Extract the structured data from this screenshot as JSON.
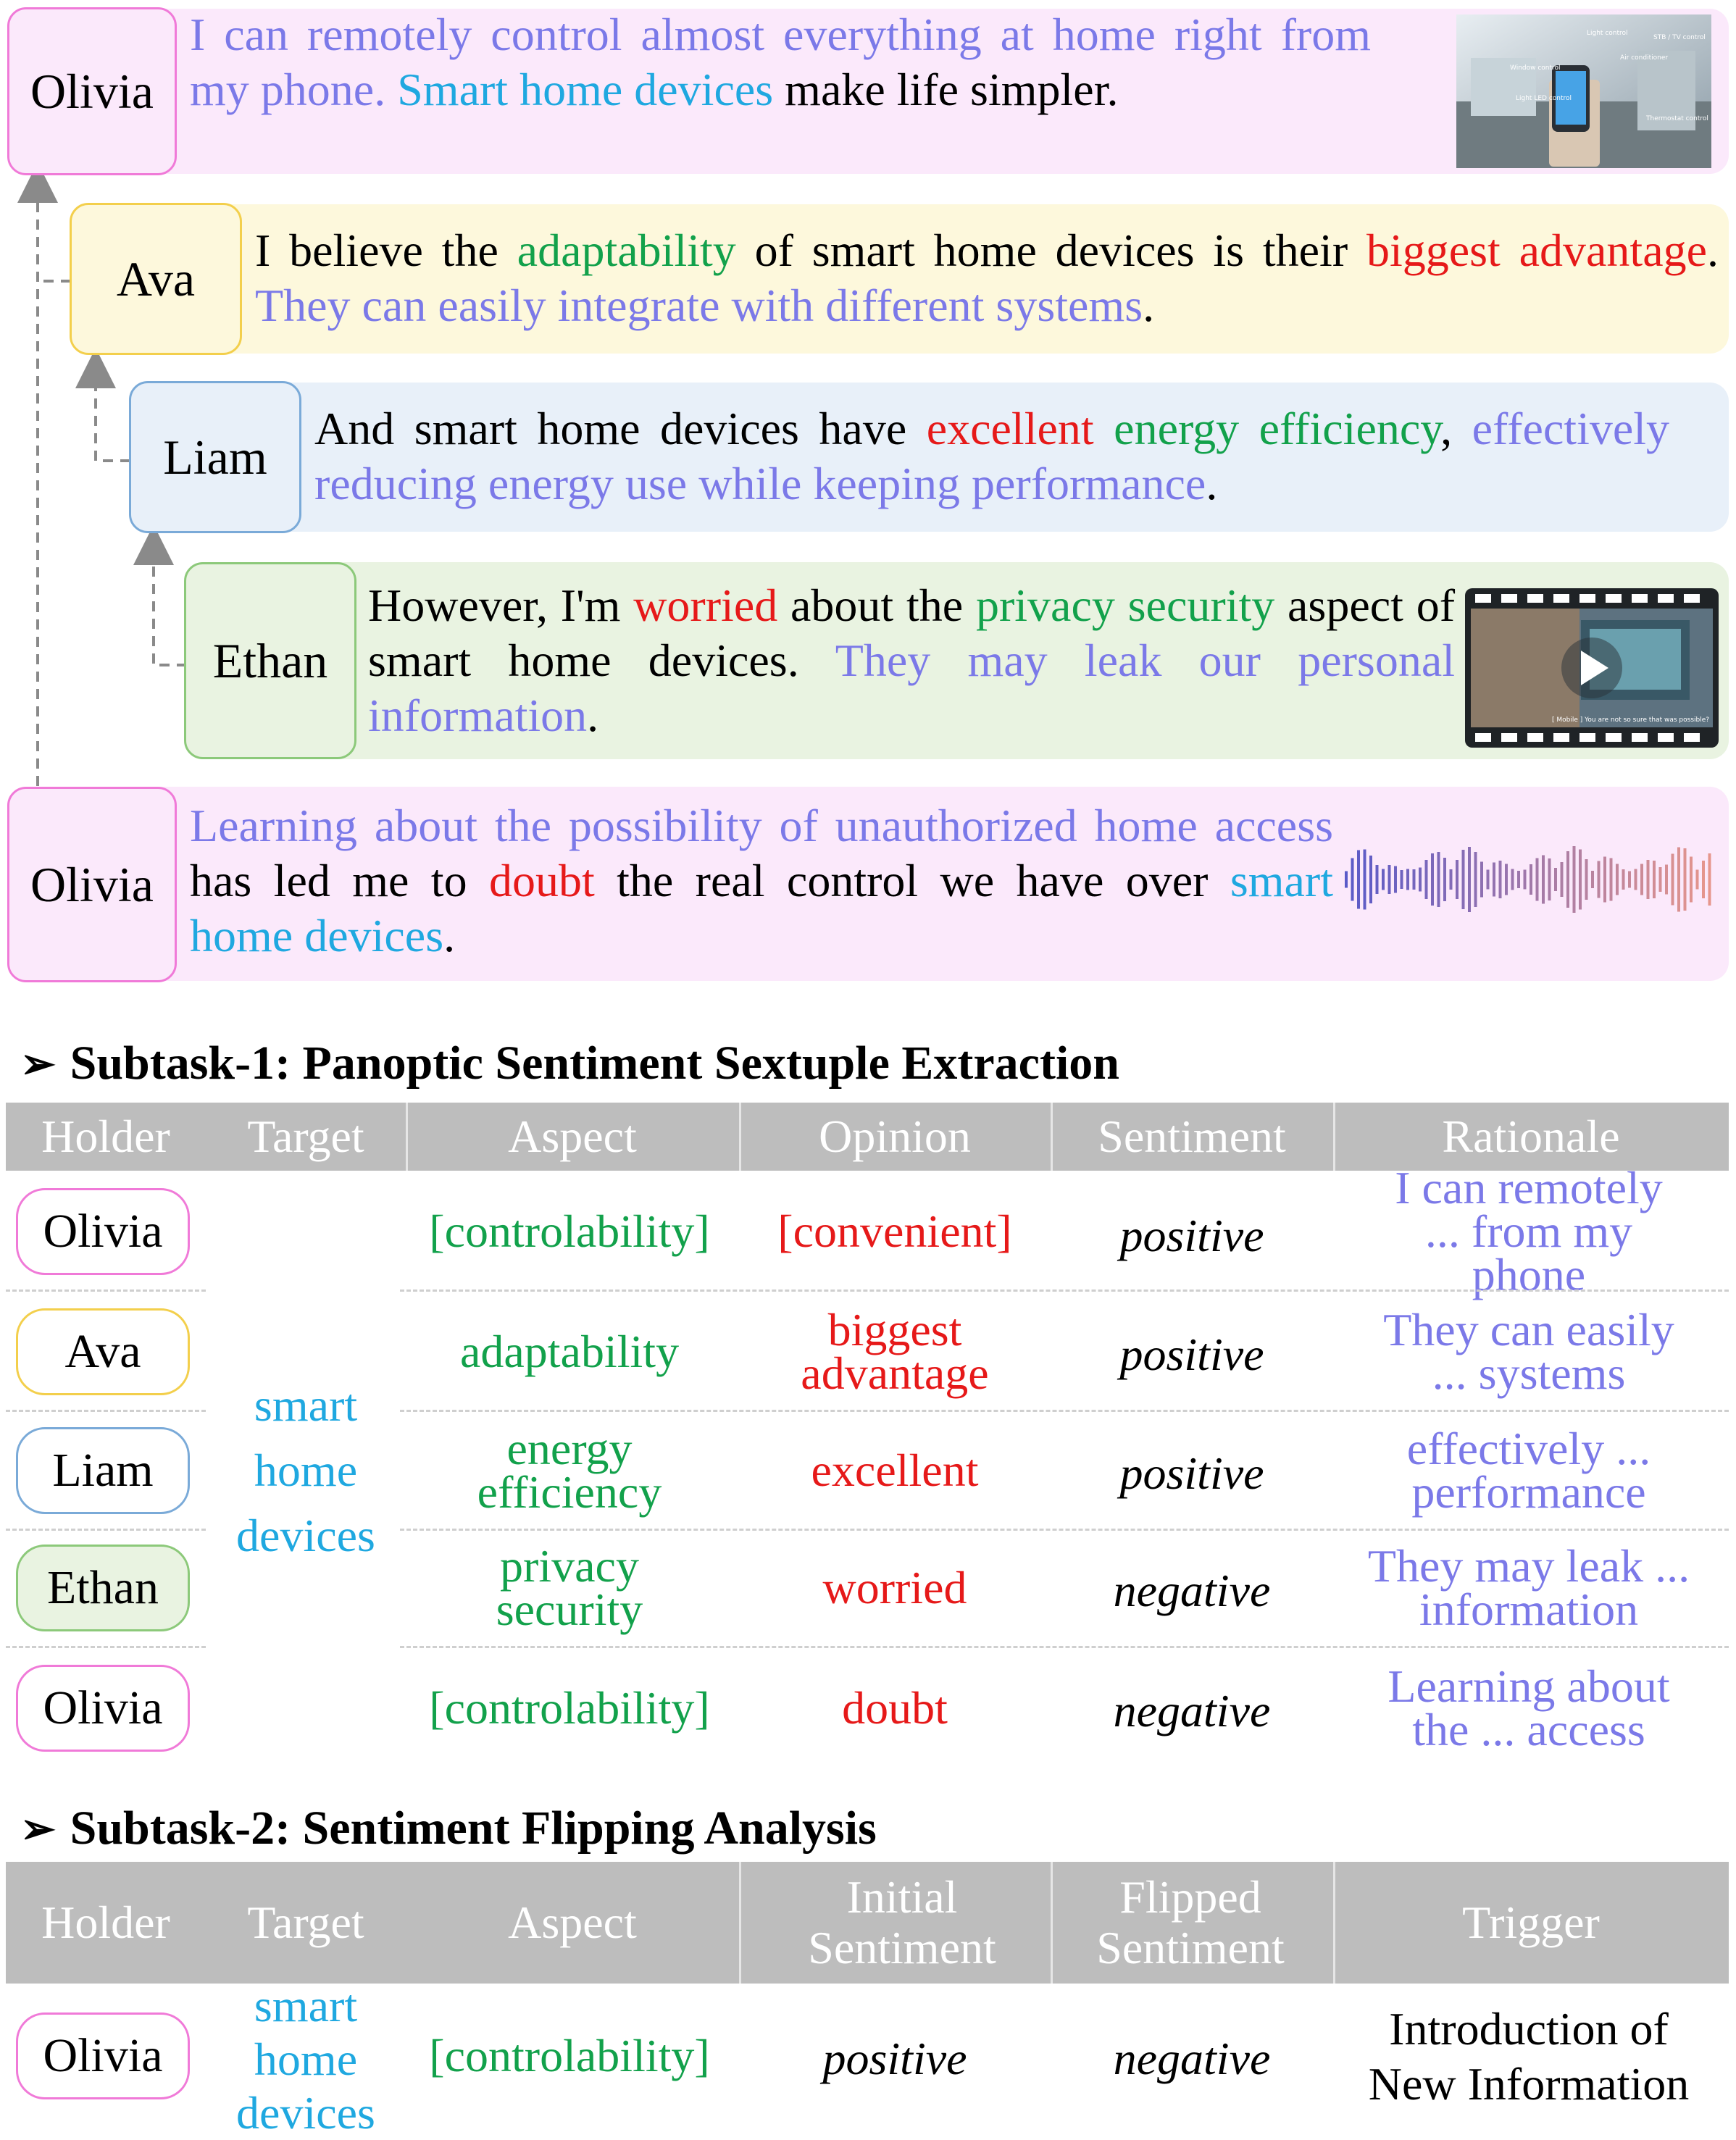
{
  "colors": {
    "olivia": "#f07ad8",
    "olivia_bg": "#fbe9fb",
    "ava": "#f3cf4c",
    "ava_bg": "#fdf8dc",
    "liam": "#7aaad8",
    "liam_bg": "#e8f0f9",
    "ethan": "#8cc97a",
    "ethan_bg": "#e9f3e1",
    "aspect_green": "#12a14b",
    "opinion_red": "#e61919",
    "target_blue": "#1fa8e0",
    "rationale_purple": "#7b79e8",
    "table_header": "#bdbdbd"
  },
  "dialogue": [
    {
      "speaker": "Olivia",
      "segments": [
        {
          "text": "I can remotely control almost everything at home right from my phone.",
          "color": "purple"
        },
        {
          "text": " ",
          "color": "black"
        },
        {
          "text": "Smart home devices",
          "color": "blue"
        },
        {
          "text": " make life simpler.",
          "color": "black"
        }
      ],
      "media": "smart-home-photo",
      "media_labels": [
        "Light control",
        "STB / TV control",
        "Air conditioner",
        "Window control",
        "Light LED control",
        "Thermostat control"
      ]
    },
    {
      "speaker": "Ava",
      "segments": [
        {
          "text": "I believe the ",
          "color": "black"
        },
        {
          "text": "adaptability",
          "color": "green"
        },
        {
          "text": " of smart home devices is their ",
          "color": "black"
        },
        {
          "text": "biggest advantage",
          "color": "red"
        },
        {
          "text": ". ",
          "color": "black"
        },
        {
          "text": "They can easily integrate with different systems",
          "color": "purple"
        },
        {
          "text": ".",
          "color": "black"
        }
      ]
    },
    {
      "speaker": "Liam",
      "segments": [
        {
          "text": "And smart home devices have ",
          "color": "black"
        },
        {
          "text": "excellent",
          "color": "red"
        },
        {
          "text": " ",
          "color": "black"
        },
        {
          "text": "energy efficiency",
          "color": "green"
        },
        {
          "text": ", ",
          "color": "black"
        },
        {
          "text": "effectively reducing energy use while keeping performance",
          "color": "purple"
        },
        {
          "text": ".",
          "color": "black"
        }
      ]
    },
    {
      "speaker": "Ethan",
      "segments": [
        {
          "text": "However, I'm ",
          "color": "black"
        },
        {
          "text": "worried",
          "color": "red"
        },
        {
          "text": " about the ",
          "color": "black"
        },
        {
          "text": "privacy security",
          "color": "green"
        },
        {
          "text": " aspect of smart home devices. ",
          "color": "black"
        },
        {
          "text": "They may leak our personal information",
          "color": "purple"
        },
        {
          "text": ".",
          "color": "black"
        }
      ],
      "media": "video-clip",
      "media_caption": "[ Mobile ] You are not so sure that was possible?"
    },
    {
      "speaker": "Olivia",
      "segments": [
        {
          "text": "Learning about the possibility of unauthorized home access",
          "color": "purple"
        },
        {
          "text": " has led me to ",
          "color": "black"
        },
        {
          "text": "doubt",
          "color": "red"
        },
        {
          "text": " the real control we have over ",
          "color": "black"
        },
        {
          "text": "smart home devices",
          "color": "blue"
        },
        {
          "text": ".",
          "color": "black"
        }
      ],
      "media": "audio-waveform"
    }
  ],
  "subtask1": {
    "arrow": "➢",
    "title": "Subtask-1: Panoptic Sentiment Sextuple Extraction",
    "headers": [
      "Holder",
      "Target",
      "Aspect",
      "Opinion",
      "Sentiment",
      "Rationale"
    ],
    "target": "smart home devices",
    "target_lines": [
      "smart",
      "home",
      "devices"
    ],
    "rows": [
      {
        "holder": "Olivia",
        "aspect": "[controlability]",
        "opinion": "[convenient]",
        "sentiment": "positive",
        "rationale": "I can remotely ... from my phone"
      },
      {
        "holder": "Ava",
        "aspect": "adaptability",
        "opinion": "biggest advantage",
        "sentiment": "positive",
        "rationale": "They can easily  ... systems"
      },
      {
        "holder": "Liam",
        "aspect": "energy efficiency",
        "opinion": "excellent",
        "sentiment": "positive",
        "rationale": "effectively  ... performance"
      },
      {
        "holder": "Ethan",
        "aspect": "privacy security",
        "opinion": "worried",
        "sentiment": "negative",
        "rationale": "They may leak ... information"
      },
      {
        "holder": "Olivia",
        "aspect": "[controlability]",
        "opinion": "doubt",
        "sentiment": "negative",
        "rationale": "Learning about the  ... access"
      }
    ]
  },
  "subtask2": {
    "arrow": "➢",
    "title": "Subtask-2: Sentiment Flipping Analysis",
    "headers": [
      "Holder",
      "Target",
      "Aspect",
      "Initial Sentiment",
      "Flipped Sentiment",
      "Trigger"
    ],
    "row": {
      "holder": "Olivia",
      "target": "smart home devices",
      "target_lines": [
        "smart",
        "home",
        "devices"
      ],
      "aspect": "[controlability]",
      "initial": "positive",
      "flipped": "negative",
      "trigger": "Introduction of New Information"
    }
  }
}
